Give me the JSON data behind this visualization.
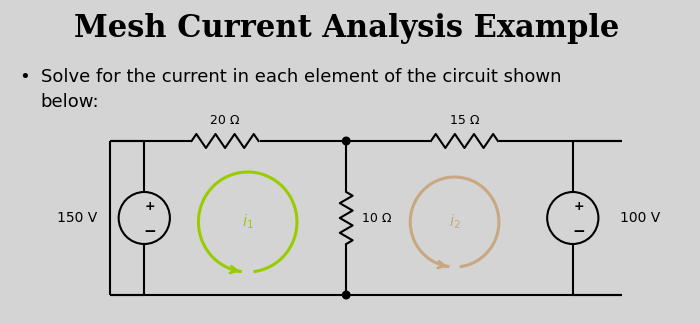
{
  "title": "Mesh Current Analysis Example",
  "bullet_line1": "Solve for the current in each element of the circuit shown",
  "bullet_line2": "below:",
  "background_color": "#d4d4d4",
  "title_fontsize": 22,
  "bullet_fontsize": 13,
  "left_voltage": "150 V",
  "right_voltage": "100 V",
  "top_left_resistor": "20 Ω",
  "top_right_resistor": "15 Ω",
  "mid_resistor": "10 Ω",
  "mesh1_color": "#99cc00",
  "mesh2_color": "#c8a882"
}
